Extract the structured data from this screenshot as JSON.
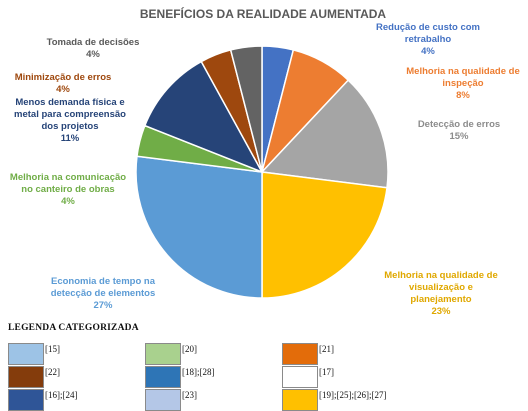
{
  "chart_data": {
    "type": "pie",
    "title": "BENEFÍCIOS DA REALIDADE AUMENTADA",
    "start": "top",
    "direction": "clockwise",
    "slices": [
      {
        "label": "Redução de custo com retrabalho",
        "value": 4,
        "value_label": "4%",
        "color": "#4472C4"
      },
      {
        "label": "Melhoria na qualidade de inspeção",
        "value": 8,
        "value_label": "8%",
        "color": "#ED7D31"
      },
      {
        "label": "Detecção de erros",
        "value": 15,
        "value_label": "15%",
        "color": "#A5A5A5"
      },
      {
        "label": "Melhoria na qualidade de visualização e planejamento",
        "value": 23,
        "value_label": "23%",
        "color": "#FFC000"
      },
      {
        "label": "Economia de tempo na detecção de elementos",
        "value": 27,
        "value_label": "27%",
        "color": "#5B9BD5"
      },
      {
        "label": "Melhoria na comunicação no canteiro de obras",
        "value": 4,
        "value_label": "4%",
        "color": "#70AD47"
      },
      {
        "label": "Menos demanda física e metal para compreensão dos projetos",
        "value": 11,
        "value_label": "11%",
        "color": "#264478"
      },
      {
        "label": "Minimização de erros",
        "value": 4,
        "value_label": "4%",
        "color": "#9E480E"
      },
      {
        "label": "Tomada de decisões",
        "value": 4,
        "value_label": "4%",
        "color": "#636363"
      }
    ],
    "legend_title": "LEGENDA CATEGORIZADA",
    "legend": [
      {
        "label": "[15]",
        "color": "#9DC3E6"
      },
      {
        "label": "[20]",
        "color": "#A9D18E"
      },
      {
        "label": "[21]",
        "color": "#E36C0A"
      },
      {
        "label": "[22]",
        "color": "#843C0C"
      },
      {
        "label": "[18];[28]",
        "color": "#2E75B6"
      },
      {
        "label": "[17]",
        "color": "#FFFFFF"
      },
      {
        "label": "[16];[24]",
        "color": "#2F5597"
      },
      {
        "label": "[23]",
        "color": "#B4C7E7"
      },
      {
        "label": "[19];[25];[26];[27]",
        "color": "#FFC000"
      }
    ]
  }
}
